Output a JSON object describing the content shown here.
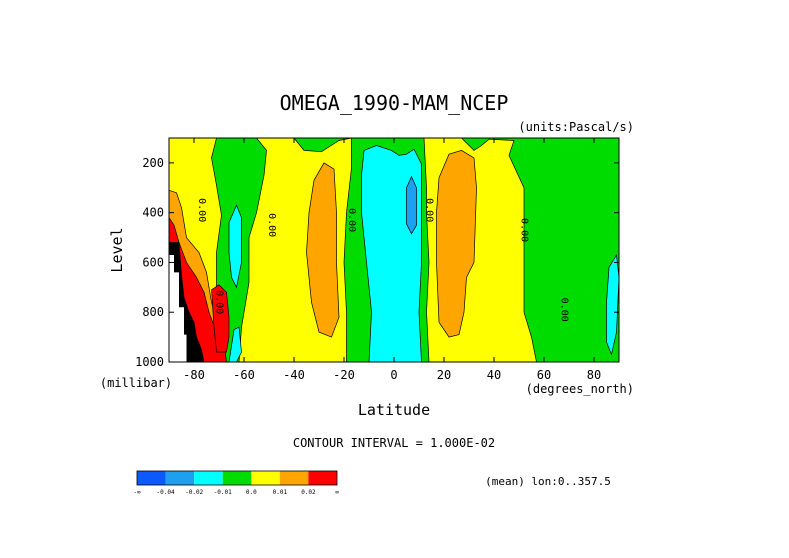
{
  "chart_data": {
    "type": "heatmap",
    "title": "OMEGA_1990-MAM_NCEP",
    "units_label": "(units:Pascal/s)",
    "xlabel": "Latitude",
    "xunits": "(degrees_north)",
    "ylabel": "Level",
    "yunits": "(millibar)",
    "xlim": [
      -90,
      90
    ],
    "ylim": [
      1000,
      100
    ],
    "x_ticks": [
      {
        "value": -80,
        "label": "-80"
      },
      {
        "value": -60,
        "label": "-60"
      },
      {
        "value": -40,
        "label": "-40"
      },
      {
        "value": -20,
        "label": "-20"
      },
      {
        "value": 0,
        "label": "0"
      },
      {
        "value": 20,
        "label": "20"
      },
      {
        "value": 40,
        "label": "40"
      },
      {
        "value": 60,
        "label": "60"
      },
      {
        "value": 80,
        "label": "80"
      }
    ],
    "y_ticks": [
      {
        "value": 200,
        "label": "200"
      },
      {
        "value": 400,
        "label": "400"
      },
      {
        "value": 600,
        "label": "600"
      },
      {
        "value": 800,
        "label": "800"
      },
      {
        "value": 1000,
        "label": "1000"
      }
    ],
    "contour_interval_text": "CONTOUR INTERVAL = 1.000E-02",
    "mean_text": "(mean) lon:0..357.5",
    "colorbar": {
      "colors": [
        "#0a5aff",
        "#1ea0f0",
        "#00ffff",
        "#00dc00",
        "#ffff00",
        "#ffa500",
        "#ff0000"
      ],
      "labels": [
        "-∞",
        "-0.04",
        "-0.02",
        "-0.01",
        "0.0",
        "0.01",
        "0.02",
        "∞"
      ]
    },
    "contour_labels": [
      {
        "lat": -78,
        "level": 390,
        "text": "0.00"
      },
      {
        "lat": -50,
        "level": 450,
        "text": "0.00"
      },
      {
        "lat": -18,
        "level": 430,
        "text": "0.00"
      },
      {
        "lat": 13,
        "level": 390,
        "text": "0.00"
      },
      {
        "lat": 51,
        "level": 470,
        "text": "0.00"
      },
      {
        "lat": -71,
        "level": 760,
        "text": "0.00"
      },
      {
        "lat": 67,
        "level": 790,
        "text": "0.00"
      }
    ],
    "regions": [
      {
        "color": "#00dc00",
        "points": [
          [
            -90,
            100
          ],
          [
            90,
            100
          ],
          [
            90,
            1000
          ],
          [
            -90,
            1000
          ]
        ]
      },
      {
        "color": "#ffff00",
        "points": [
          [
            -90,
            100
          ],
          [
            -71,
            100
          ],
          [
            -73,
            180
          ],
          [
            -71,
            290
          ],
          [
            -69,
            410
          ],
          [
            -71,
            560
          ],
          [
            -71,
            700
          ],
          [
            -70,
            900
          ],
          [
            -68,
            1000
          ],
          [
            -90,
            1000
          ]
        ]
      },
      {
        "color": "#ffff00",
        "points": [
          [
            -55,
            100
          ],
          [
            -40,
            100
          ],
          [
            -36,
            150
          ],
          [
            -29,
            155
          ],
          [
            -22,
            110
          ],
          [
            -17,
            100
          ],
          [
            -17,
            220
          ],
          [
            -19,
            400
          ],
          [
            -20,
            600
          ],
          [
            -19,
            800
          ],
          [
            -19,
            1000
          ],
          [
            -62,
            1000
          ],
          [
            -61,
            860
          ],
          [
            -58,
            680
          ],
          [
            -58,
            500
          ],
          [
            -55,
            400
          ],
          [
            -52,
            250
          ],
          [
            -51,
            150
          ]
        ]
      },
      {
        "color": "#ffa500",
        "points": [
          [
            -32,
            270
          ],
          [
            -28,
            200
          ],
          [
            -24,
            225
          ],
          [
            -23,
            400
          ],
          [
            -23,
            600
          ],
          [
            -22,
            820
          ],
          [
            -25,
            900
          ],
          [
            -30,
            880
          ],
          [
            -33,
            760
          ],
          [
            -35,
            560
          ],
          [
            -34,
            400
          ]
        ]
      },
      {
        "color": "#ffff00",
        "points": [
          [
            12,
            100
          ],
          [
            27,
            100
          ],
          [
            32,
            150
          ],
          [
            35,
            130
          ],
          [
            38,
            105
          ],
          [
            48,
            110
          ],
          [
            46,
            170
          ],
          [
            52,
            300
          ],
          [
            52,
            600
          ],
          [
            52,
            800
          ],
          [
            55,
            900
          ],
          [
            57,
            1000
          ],
          [
            14,
            1000
          ],
          [
            13,
            800
          ],
          [
            14,
            600
          ],
          [
            13,
            400
          ],
          [
            13,
            300
          ]
        ]
      },
      {
        "color": "#ffa500",
        "points": [
          [
            18,
            260
          ],
          [
            22,
            165
          ],
          [
            27,
            150
          ],
          [
            32,
            180
          ],
          [
            33,
            300
          ],
          [
            32,
            600
          ],
          [
            29,
            660
          ],
          [
            28,
            800
          ],
          [
            26,
            890
          ],
          [
            22,
            900
          ],
          [
            18,
            840
          ],
          [
            17,
            600
          ],
          [
            17,
            400
          ]
        ]
      },
      {
        "color": "#00ffff",
        "points": [
          [
            -12,
            150
          ],
          [
            -7,
            130
          ],
          [
            -1,
            150
          ],
          [
            2,
            170
          ],
          [
            5,
            165
          ],
          [
            8,
            145
          ],
          [
            11,
            205
          ],
          [
            11,
            400
          ],
          [
            11,
            600
          ],
          [
            10,
            800
          ],
          [
            11,
            1000
          ],
          [
            -10,
            1000
          ],
          [
            -9,
            800
          ],
          [
            -11,
            600
          ],
          [
            -13,
            400
          ],
          [
            -13,
            250
          ]
        ]
      },
      {
        "color": "#1ea0f0",
        "points": [
          [
            5,
            300
          ],
          [
            7,
            255
          ],
          [
            9,
            300
          ],
          [
            9,
            450
          ],
          [
            7,
            485
          ],
          [
            5,
            445
          ]
        ]
      },
      {
        "color": "#00ffff",
        "points": [
          [
            -66,
            440
          ],
          [
            -63,
            370
          ],
          [
            -61,
            420
          ],
          [
            -61,
            600
          ],
          [
            -63,
            700
          ],
          [
            -65,
            660
          ],
          [
            -66,
            560
          ]
        ]
      },
      {
        "color": "#00ffff",
        "points": [
          [
            -64,
            870
          ],
          [
            -62,
            860
          ],
          [
            -61,
            960
          ],
          [
            -63,
            1000
          ],
          [
            -66,
            1000
          ]
        ]
      },
      {
        "color": "#00ffff",
        "points": [
          [
            86,
            620
          ],
          [
            89,
            570
          ],
          [
            90,
            660
          ],
          [
            89,
            880
          ],
          [
            87,
            970
          ],
          [
            85,
            920
          ],
          [
            85,
            760
          ]
        ]
      },
      {
        "color": "#ffa500",
        "points": [
          [
            -90,
            310
          ],
          [
            -87,
            320
          ],
          [
            -85,
            380
          ],
          [
            -83,
            500
          ],
          [
            -78,
            560
          ],
          [
            -75,
            640
          ],
          [
            -73,
            760
          ],
          [
            -70,
            860
          ],
          [
            -68,
            1000
          ],
          [
            -90,
            1000
          ]
        ]
      },
      {
        "color": "#ff0000",
        "points": [
          [
            -90,
            420
          ],
          [
            -88,
            450
          ],
          [
            -86,
            520
          ],
          [
            -83,
            600
          ],
          [
            -79,
            660
          ],
          [
            -76,
            720
          ],
          [
            -74,
            800
          ],
          [
            -71,
            880
          ],
          [
            -68,
            920
          ],
          [
            -67,
            1000
          ],
          [
            -90,
            1000
          ]
        ]
      },
      {
        "color": "#ff0000",
        "points": [
          [
            -73,
            710
          ],
          [
            -70,
            690
          ],
          [
            -67,
            720
          ],
          [
            -66,
            820
          ],
          [
            -66,
            900
          ],
          [
            -67,
            960
          ],
          [
            -71,
            960
          ],
          [
            -72,
            860
          ]
        ]
      },
      {
        "color": "#000000",
        "points": [
          [
            -86,
            520
          ],
          [
            -85,
            650
          ],
          [
            -84,
            740
          ],
          [
            -82,
            800
          ],
          [
            -80,
            840
          ],
          [
            -79,
            900
          ],
          [
            -77,
            950
          ],
          [
            -76,
            1000
          ],
          [
            -90,
            1000
          ],
          [
            -90,
            520
          ]
        ]
      },
      {
        "color": "#ffffff",
        "points": [
          [
            -90,
            570
          ],
          [
            -88,
            570
          ],
          [
            -88,
            640
          ],
          [
            -86,
            640
          ],
          [
            -86,
            780
          ],
          [
            -84,
            780
          ],
          [
            -84,
            890
          ],
          [
            -83,
            890
          ],
          [
            -83,
            1000
          ],
          [
            -90,
            1000
          ]
        ]
      }
    ]
  }
}
